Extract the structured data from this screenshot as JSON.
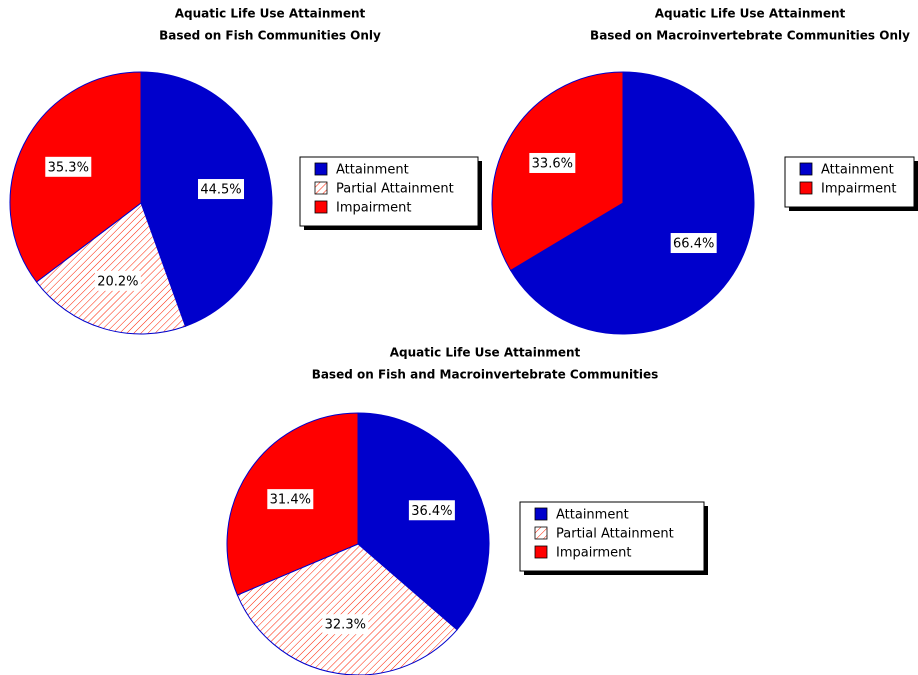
{
  "chart_data": [
    {
      "type": "pie",
      "title": "Aquatic Life Use Attainment",
      "subtitle": "Based on Fish Communities Only",
      "categories": [
        "Attainment",
        "Partial Attainment",
        "Impairment"
      ],
      "values": [
        44.5,
        20.2,
        35.3
      ],
      "value_labels": [
        "44.5%",
        "20.2%",
        "35.3%"
      ],
      "colors": [
        "#0000cc",
        "#ff2000",
        "#ff0000"
      ],
      "hatched": [
        false,
        true,
        false
      ]
    },
    {
      "type": "pie",
      "title": "Aquatic Life Use Attainment",
      "subtitle": "Based on Macroinvertebrate Communities Only",
      "categories": [
        "Attainment",
        "Impairment"
      ],
      "values": [
        66.4,
        33.6
      ],
      "value_labels": [
        "66.4%",
        "33.6%"
      ],
      "colors": [
        "#0000cc",
        "#ff0000"
      ],
      "hatched": [
        false,
        false
      ]
    },
    {
      "type": "pie",
      "title": "Aquatic Life Use Attainment",
      "subtitle": "Based on Fish and Macroinvertebrate Communities",
      "categories": [
        "Attainment",
        "Partial Attainment",
        "Impairment"
      ],
      "values": [
        36.4,
        32.3,
        31.4
      ],
      "value_labels": [
        "36.4%",
        "32.3%",
        "31.4%"
      ],
      "colors": [
        "#0000cc",
        "#ff2000",
        "#ff0000"
      ],
      "hatched": [
        false,
        true,
        false
      ]
    }
  ]
}
